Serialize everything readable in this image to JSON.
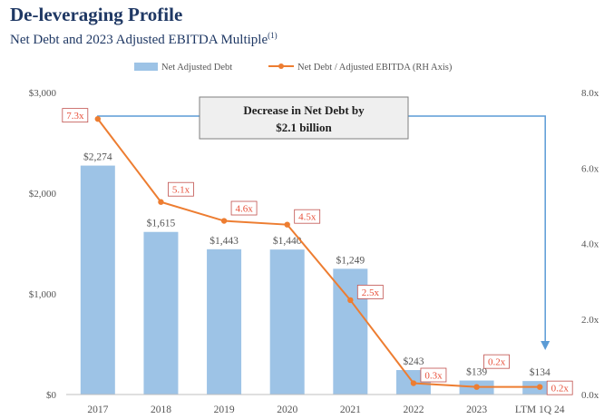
{
  "header": {
    "title": "De-leveraging Profile",
    "subtitle": "Net Debt and 2023 Adjusted EBITDA Multiple",
    "subtitle_note": "(1)"
  },
  "colors": {
    "bar": "#9dc3e6",
    "line": "#ed7d31",
    "label_red": "#e8503a",
    "axis_text": "#555555",
    "title": "#1f3864",
    "arrow": "#5b9bd5",
    "callout_bg": "#efefef",
    "callout_border": "#7f7f7f"
  },
  "callout": {
    "line1": "Decrease in Net Debt by",
    "line2": "$2.1 billion"
  },
  "chart_data": {
    "type": "bar",
    "categories": [
      "2017",
      "2018",
      "2019",
      "2020",
      "2021",
      "2022",
      "2023",
      "LTM 1Q 24"
    ],
    "series": [
      {
        "name": "Net Adjusted Debt",
        "type": "bar",
        "axis": "left",
        "values": [
          2274,
          1615,
          1443,
          1440,
          1249,
          243,
          139,
          134
        ],
        "labels": [
          "$2,274",
          "$1,615",
          "$1,443",
          "$1,440",
          "$1,249",
          "$243",
          "$139",
          "$134"
        ]
      },
      {
        "name": "Net Debt / Adjusted EBITDA (RH Axis)",
        "type": "line",
        "axis": "right",
        "values": [
          7.3,
          5.1,
          4.6,
          4.5,
          2.5,
          0.3,
          0.2,
          0.2
        ],
        "labels": [
          "7.3x",
          "5.1x",
          "4.6x",
          "4.5x",
          "2.5x",
          "0.3x",
          "0.2x",
          "0.2x"
        ]
      }
    ],
    "y_left": {
      "min": 0,
      "max": 3000,
      "ticks": [
        "$0",
        "$1,000",
        "$2,000",
        "$3,000"
      ]
    },
    "y_right": {
      "min": 0,
      "max": 8,
      "ticks": [
        "0.0x",
        "2.0x",
        "4.0x",
        "6.0x",
        "8.0x"
      ]
    },
    "legend_position": "top-center",
    "grid": false
  }
}
